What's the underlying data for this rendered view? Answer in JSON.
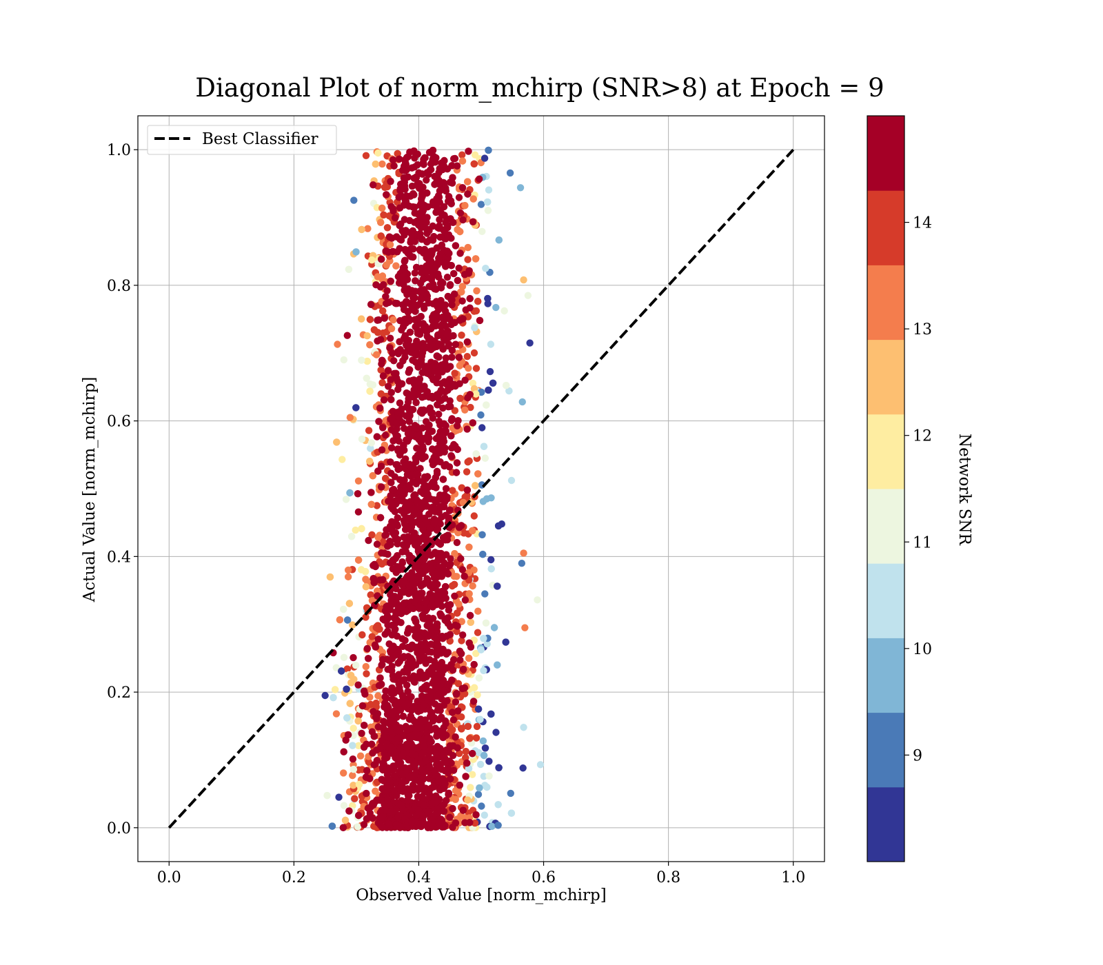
{
  "chart_data": {
    "type": "scatter",
    "title": "Diagonal Plot of norm_mchirp (SNR>8) at Epoch = 9",
    "xlabel": "Observed Value [norm_mchirp]",
    "ylabel": "Actual Value [norm_mchirp]",
    "xlim": [
      -0.05,
      1.05
    ],
    "ylim": [
      -0.05,
      1.05
    ],
    "xticks": [
      "0.0",
      "0.2",
      "0.4",
      "0.6",
      "0.8",
      "1.0"
    ],
    "yticks": [
      "0.0",
      "0.2",
      "0.4",
      "0.6",
      "0.8",
      "1.0"
    ],
    "grid": true,
    "legend": {
      "placement": "top-left",
      "entries": [
        {
          "label": "Best Classifier",
          "style": "dashed",
          "color": "#000000"
        }
      ]
    },
    "reference_line": {
      "x": [
        0.0,
        1.0
      ],
      "y": [
        0.0,
        1.0
      ],
      "style": "dashed",
      "color": "#000000"
    },
    "scatter_cloud": {
      "description_of_shape": "dense vertical band",
      "x_center_at_y0": 0.39,
      "x_center_at_y1": 0.415,
      "x_halfwidth_at_y0": 0.12,
      "x_halfwidth_at_y1": 0.1,
      "y_range": [
        0.0,
        1.0
      ],
      "outliers": [
        {
          "x": 0.25,
          "y": 0.195,
          "snr": 8.3
        },
        {
          "x": 0.263,
          "y": 0.258,
          "snr": 14.5
        },
        {
          "x": 0.28,
          "y": 0.69,
          "snr": 11.2
        },
        {
          "x": 0.29,
          "y": 0.605,
          "snr": 13.2
        },
        {
          "x": 0.272,
          "y": 0.045,
          "snr": 8.3
        },
        {
          "x": 0.287,
          "y": 0.38,
          "snr": 13.3
        },
        {
          "x": 0.287,
          "y": 0.37,
          "snr": 13.3
        },
        {
          "x": 0.268,
          "y": 0.168,
          "snr": 13.3
        },
        {
          "x": 0.578,
          "y": 0.715,
          "snr": 8.3
        },
        {
          "x": 0.575,
          "y": 0.785,
          "snr": 11.2
        },
        {
          "x": 0.568,
          "y": 0.808,
          "snr": 12.6
        },
        {
          "x": 0.59,
          "y": 0.336,
          "snr": 11.2
        },
        {
          "x": 0.595,
          "y": 0.093,
          "snr": 10.5
        },
        {
          "x": 0.57,
          "y": 0.295,
          "snr": 13.3
        },
        {
          "x": 0.566,
          "y": 0.628,
          "snr": 9.7
        },
        {
          "x": 0.568,
          "y": 0.148,
          "snr": 10.5
        },
        {
          "x": 0.568,
          "y": 0.405,
          "snr": 13.3
        },
        {
          "x": 0.563,
          "y": 0.944,
          "snr": 9.7
        },
        {
          "x": 0.565,
          "y": 0.39,
          "snr": 9.0
        },
        {
          "x": 0.567,
          "y": 0.088,
          "snr": 8.3
        }
      ]
    },
    "colorbar": {
      "label": "Network SNR",
      "range": [
        8.0,
        15.0
      ],
      "ticks": [
        "9",
        "10",
        "11",
        "12",
        "13",
        "14"
      ],
      "tick_values": [
        9,
        10,
        11,
        12,
        13,
        14
      ],
      "colors": [
        "#313695",
        "#4a7ab7",
        "#80b6d6",
        "#c0e2ed",
        "#edf6e0",
        "#feeda1",
        "#fdbf71",
        "#f47d4d",
        "#d63b2a",
        "#a50026"
      ],
      "marker_color_for_high_snr": "#a50026"
    }
  }
}
